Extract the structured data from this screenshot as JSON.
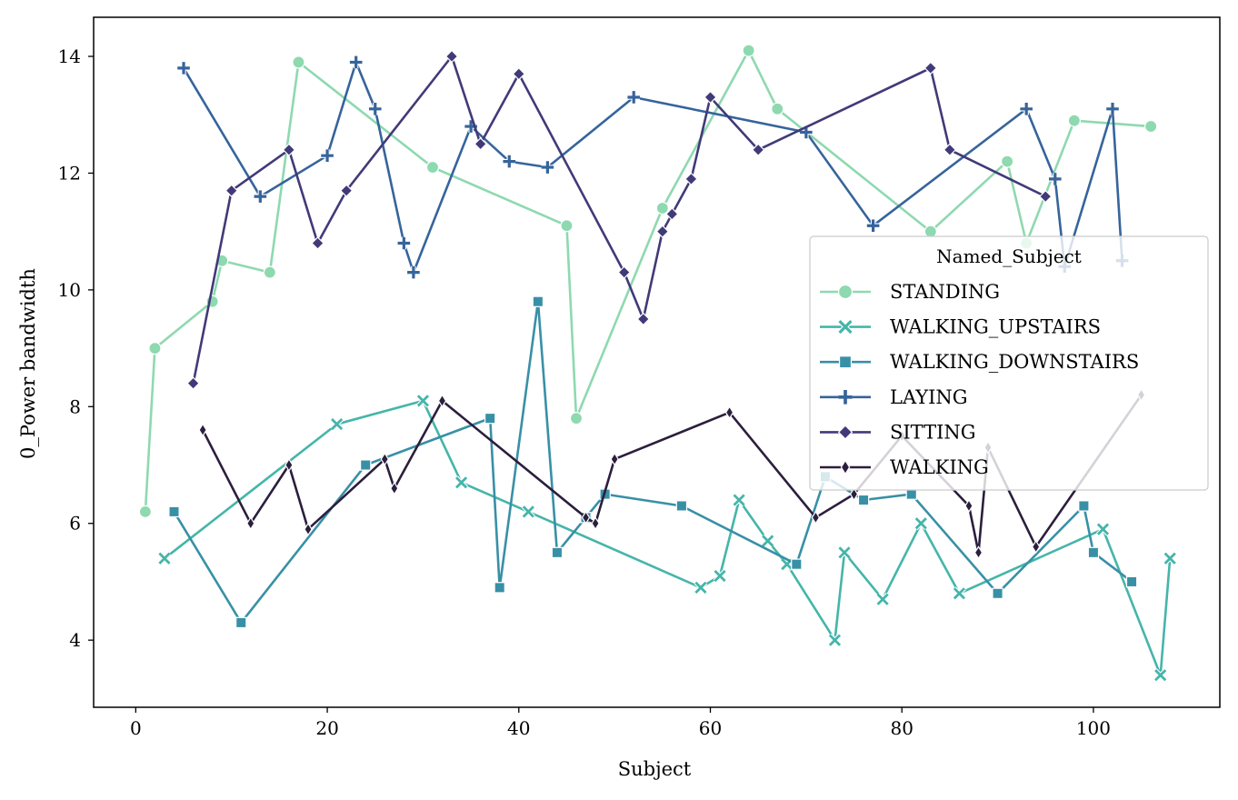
{
  "chart_data": {
    "type": "line",
    "xlabel": "Subject",
    "ylabel": "0_Power bandwidth",
    "xlim": [
      -4.4,
      113.2
    ],
    "ylim": [
      2.85,
      14.67
    ],
    "xticks": [
      0,
      20,
      40,
      60,
      80,
      100
    ],
    "yticks": [
      4,
      6,
      8,
      10,
      12,
      14
    ],
    "xtick_labels": [
      "0",
      "20",
      "40",
      "60",
      "80",
      "100"
    ],
    "ytick_labels": [
      "4",
      "6",
      "8",
      "10",
      "12",
      "14"
    ],
    "grid": false,
    "legend": {
      "title": "Named_Subject",
      "placement": "right"
    },
    "series": [
      {
        "name": "STANDING",
        "color": "#8ed9b0",
        "marker": "circle",
        "points": [
          [
            1,
            6.2
          ],
          [
            2,
            9.0
          ],
          [
            8,
            9.8
          ],
          [
            9,
            10.5
          ],
          [
            14,
            10.3
          ],
          [
            17,
            13.9
          ],
          [
            31,
            12.1
          ],
          [
            45,
            11.1
          ],
          [
            46,
            7.8
          ],
          [
            55,
            11.4
          ],
          [
            64,
            14.1
          ],
          [
            67,
            13.1
          ],
          [
            83,
            11.0
          ],
          [
            91,
            12.2
          ],
          [
            93,
            10.8
          ],
          [
            98,
            12.9
          ],
          [
            106,
            12.8
          ]
        ]
      },
      {
        "name": "WALKING_UPSTAIRS",
        "color": "#45b5aa",
        "marker": "x",
        "points": [
          [
            3,
            5.4
          ],
          [
            21,
            7.7
          ],
          [
            30,
            8.1
          ],
          [
            34,
            6.7
          ],
          [
            41,
            6.2
          ],
          [
            59,
            4.9
          ],
          [
            61,
            5.1
          ],
          [
            63,
            6.4
          ],
          [
            66,
            5.7
          ],
          [
            68,
            5.3
          ],
          [
            73,
            4.0
          ],
          [
            74,
            5.5
          ],
          [
            78,
            4.7
          ],
          [
            82,
            6.0
          ],
          [
            86,
            4.8
          ],
          [
            101,
            5.9
          ],
          [
            107,
            3.4
          ],
          [
            108,
            5.4
          ]
        ]
      },
      {
        "name": "WALKING_DOWNSTAIRS",
        "color": "#3890a6",
        "marker": "square",
        "points": [
          [
            4,
            6.2
          ],
          [
            11,
            4.3
          ],
          [
            24,
            7.0
          ],
          [
            37,
            7.8
          ],
          [
            38,
            4.9
          ],
          [
            42,
            9.8
          ],
          [
            44,
            5.5
          ],
          [
            47,
            6.1
          ],
          [
            49,
            6.5
          ],
          [
            57,
            6.3
          ],
          [
            69,
            5.3
          ],
          [
            72,
            6.8
          ],
          [
            76,
            6.4
          ],
          [
            81,
            6.5
          ],
          [
            90,
            4.8
          ],
          [
            99,
            6.3
          ],
          [
            100,
            5.5
          ],
          [
            104,
            5.0
          ]
        ]
      },
      {
        "name": "LAYING",
        "color": "#36649b",
        "marker": "plus",
        "points": [
          [
            5,
            13.8
          ],
          [
            13,
            11.6
          ],
          [
            20,
            12.3
          ],
          [
            23,
            13.9
          ],
          [
            25,
            13.1
          ],
          [
            28,
            10.8
          ],
          [
            29,
            10.3
          ],
          [
            35,
            12.8
          ],
          [
            39,
            12.2
          ],
          [
            43,
            12.1
          ],
          [
            52,
            13.3
          ],
          [
            70,
            12.7
          ],
          [
            77,
            11.1
          ],
          [
            93,
            13.1
          ],
          [
            96,
            11.9
          ],
          [
            97,
            10.4
          ],
          [
            102,
            13.1
          ],
          [
            103,
            10.5
          ]
        ]
      },
      {
        "name": "SITTING",
        "color": "#413a78",
        "marker": "diamond",
        "points": [
          [
            6,
            8.4
          ],
          [
            10,
            11.7
          ],
          [
            16,
            12.4
          ],
          [
            19,
            10.8
          ],
          [
            22,
            11.7
          ],
          [
            33,
            14.0
          ],
          [
            36,
            12.5
          ],
          [
            40,
            13.7
          ],
          [
            51,
            10.3
          ],
          [
            53,
            9.5
          ],
          [
            55,
            11.0
          ],
          [
            56,
            11.3
          ],
          [
            58,
            11.9
          ],
          [
            60,
            13.3
          ],
          [
            65,
            12.4
          ],
          [
            83,
            13.8
          ],
          [
            85,
            12.4
          ],
          [
            95,
            11.6
          ]
        ]
      },
      {
        "name": "WALKING",
        "color": "#2c1e3d",
        "marker": "thin-diamond",
        "points": [
          [
            7,
            7.6
          ],
          [
            12,
            6.0
          ],
          [
            16,
            7.0
          ],
          [
            18,
            5.9
          ],
          [
            26,
            7.1
          ],
          [
            27,
            6.6
          ],
          [
            32,
            8.1
          ],
          [
            47,
            6.1
          ],
          [
            48,
            6.0
          ],
          [
            50,
            7.1
          ],
          [
            62,
            7.9
          ],
          [
            71,
            6.1
          ],
          [
            75,
            6.5
          ],
          [
            80,
            7.5
          ],
          [
            87,
            6.3
          ],
          [
            88,
            5.5
          ],
          [
            89,
            7.3
          ],
          [
            94,
            5.6
          ],
          [
            105,
            8.2
          ]
        ]
      }
    ]
  }
}
